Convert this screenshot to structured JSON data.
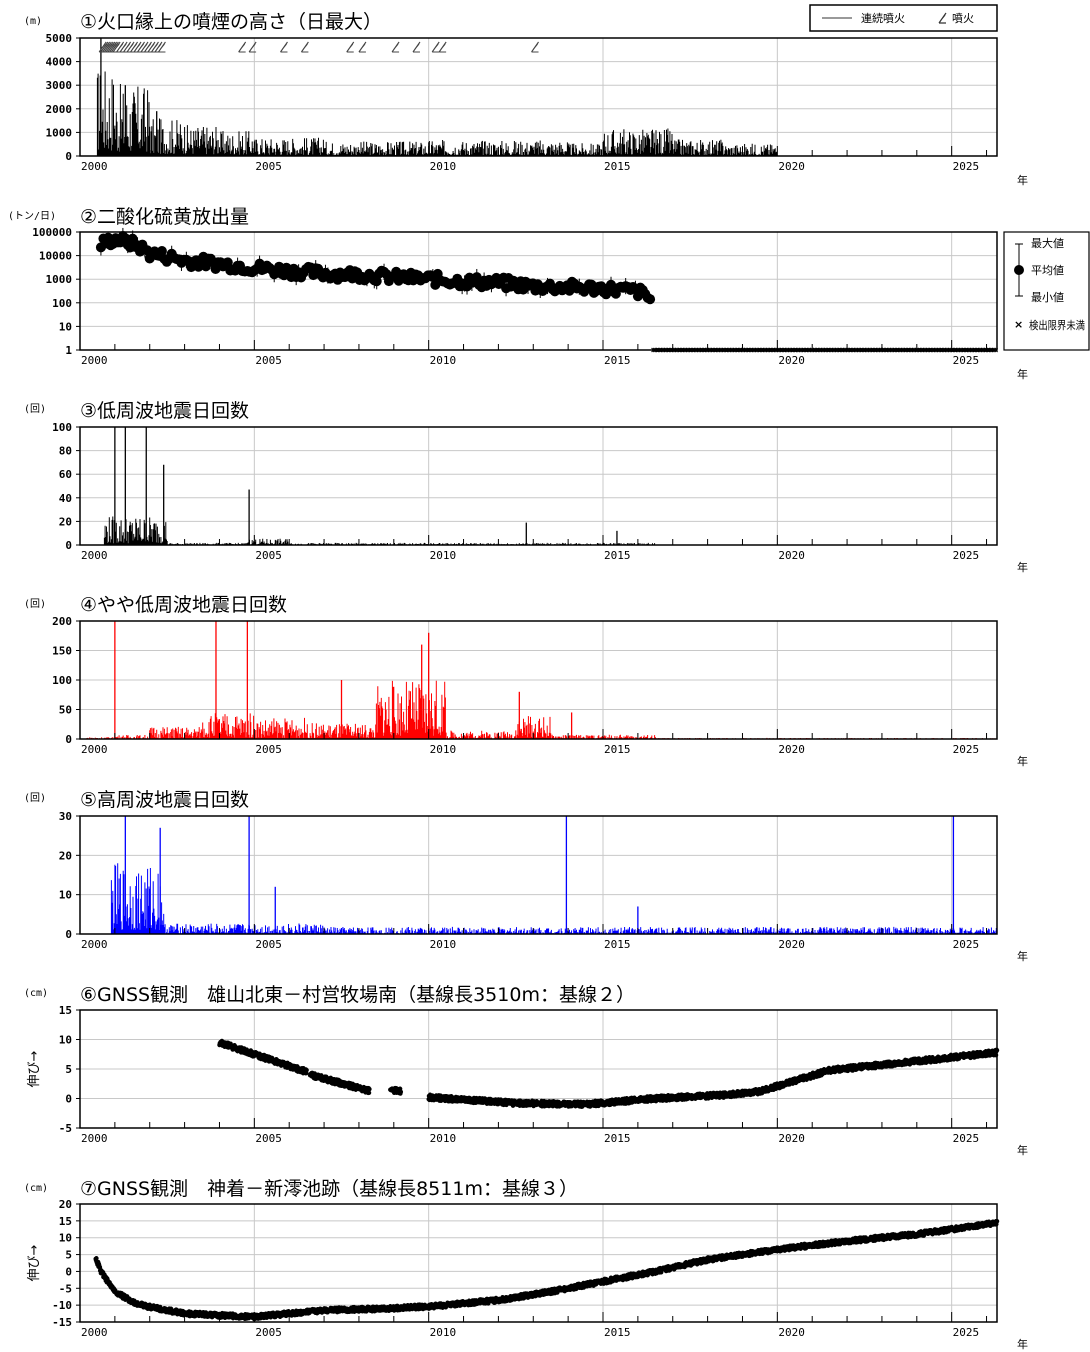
{
  "chart_data": [
    {
      "id": "p1",
      "type": "bar",
      "title": "①火口縁上の噴煙の高さ（日最大）",
      "unit": "(m)",
      "ylim": [
        0,
        5000
      ],
      "yticks": [
        "0",
        "1000",
        "2000",
        "3000",
        "4000",
        "5000"
      ],
      "color": "#000000",
      "legend": {
        "position": "top-right",
        "line_label": "連続噴火",
        "marker_label": "噴火"
      },
      "eruption_years": [
        2000.55,
        2000.6,
        2000.65,
        2000.7,
        2000.75,
        2000.8,
        2000.85,
        2000.9,
        2000.95,
        2001.05,
        2001.15,
        2001.25,
        2001.35,
        2001.45,
        2001.55,
        2001.65,
        2001.75,
        2001.85,
        2001.95,
        2002.05,
        2002.15,
        2002.25,
        2004.55,
        2004.85,
        2005.75,
        2006.35,
        2007.65,
        2008.0,
        2008.95,
        2009.55,
        2010.1,
        2010.3,
        2012.95
      ],
      "segments": [
        {
          "from": 2000.2,
          "to": 2000.5,
          "value": 0
        },
        {
          "from": 2000.5,
          "to": 2001.0,
          "value": 2200
        },
        {
          "from": 2001.0,
          "to": 2002.0,
          "value": 1700
        },
        {
          "from": 2002.0,
          "to": 2003.0,
          "value": 900
        },
        {
          "from": 2003.0,
          "to": 2004.0,
          "value": 750
        },
        {
          "from": 2004.0,
          "to": 2005.0,
          "value": 600
        },
        {
          "from": 2005.0,
          "to": 2007.0,
          "value": 450
        },
        {
          "from": 2007.0,
          "to": 2010.0,
          "value": 350
        },
        {
          "from": 2010.0,
          "to": 2014.0,
          "value": 380
        },
        {
          "from": 2014.0,
          "to": 2015.0,
          "value": 300
        },
        {
          "from": 2015.0,
          "to": 2017.0,
          "value": 650
        },
        {
          "from": 2017.0,
          "to": 2018.5,
          "value": 400
        },
        {
          "from": 2018.5,
          "to": 2020.0,
          "value": 300
        },
        {
          "from": 2020.0,
          "to": 2026.3,
          "value": 0
        }
      ],
      "spikes": [
        {
          "x": 2000.6,
          "value": 5000
        },
        {
          "x": 2001.3,
          "value": 3000
        },
        {
          "x": 2002.2,
          "value": 1900
        }
      ]
    },
    {
      "id": "p2",
      "type": "scatter",
      "title": "②二酸化硫黄放出量",
      "unit": "(トン/日)",
      "yscale": "log",
      "ylim": [
        1,
        100000
      ],
      "yticks": [
        "1",
        "10",
        "100",
        "1000",
        "10000",
        "100000"
      ],
      "legend": {
        "position": "right",
        "max_label": "最大値",
        "mean_label": "平均値",
        "min_label": "最小値",
        "below_label": "検出限界未満"
      },
      "trend": [
        [
          2000.6,
          30000
        ],
        [
          2001.0,
          50000
        ],
        [
          2002.0,
          12000
        ],
        [
          2003.0,
          6000
        ],
        [
          2004.0,
          4500
        ],
        [
          2005.0,
          3000
        ],
        [
          2006.0,
          2200
        ],
        [
          2007.0,
          1700
        ],
        [
          2008.0,
          1600
        ],
        [
          2009.0,
          1200
        ],
        [
          2010.0,
          1000
        ],
        [
          2011.0,
          800
        ],
        [
          2012.0,
          700
        ],
        [
          2013.0,
          500
        ],
        [
          2014.0,
          450
        ],
        [
          2015.0,
          400
        ],
        [
          2016.0,
          300
        ],
        [
          2016.4,
          120
        ]
      ],
      "below_from": 2016.45,
      "below_to": 2026.3
    },
    {
      "id": "p3",
      "type": "bar",
      "title": "③低周波地震日回数",
      "unit": "(回)",
      "ylim": [
        0,
        100
      ],
      "yticks": [
        "0",
        "20",
        "40",
        "60",
        "80",
        "100"
      ],
      "color": "#000000",
      "segments": [
        {
          "from": 2000.2,
          "to": 2000.7,
          "value": 0
        },
        {
          "from": 2000.7,
          "to": 2002.5,
          "value": 14
        },
        {
          "from": 2002.5,
          "to": 2004.8,
          "value": 1
        },
        {
          "from": 2004.8,
          "to": 2006.0,
          "value": 3
        },
        {
          "from": 2006.0,
          "to": 2016.5,
          "value": 1
        },
        {
          "from": 2016.5,
          "to": 2026.3,
          "value": 0
        }
      ],
      "spikes": [
        {
          "x": 2001.0,
          "value": 100
        },
        {
          "x": 2001.3,
          "value": 100
        },
        {
          "x": 2001.9,
          "value": 100
        },
        {
          "x": 2002.4,
          "value": 68
        },
        {
          "x": 2004.85,
          "value": 47
        },
        {
          "x": 2012.8,
          "value": 19
        },
        {
          "x": 2015.4,
          "value": 12
        }
      ]
    },
    {
      "id": "p4",
      "type": "bar",
      "title": "④やや低周波地震日回数",
      "unit": "(回)",
      "ylim": [
        0,
        200
      ],
      "yticks": [
        "0",
        "50",
        "100",
        "150",
        "200"
      ],
      "color": "#ff0000",
      "segments": [
        {
          "from": 2000.2,
          "to": 2001.0,
          "value": 2
        },
        {
          "from": 2001.0,
          "to": 2002.0,
          "value": 4
        },
        {
          "from": 2002.0,
          "to": 2003.5,
          "value": 12
        },
        {
          "from": 2003.5,
          "to": 2005.0,
          "value": 25
        },
        {
          "from": 2005.0,
          "to": 2006.5,
          "value": 20
        },
        {
          "from": 2006.5,
          "to": 2008.5,
          "value": 15
        },
        {
          "from": 2008.5,
          "to": 2010.5,
          "value": 55
        },
        {
          "from": 2010.5,
          "to": 2012.5,
          "value": 8
        },
        {
          "from": 2012.5,
          "to": 2013.5,
          "value": 22
        },
        {
          "from": 2013.5,
          "to": 2016.5,
          "value": 4
        },
        {
          "from": 2016.5,
          "to": 2026.3,
          "value": 1
        }
      ],
      "spikes": [
        {
          "x": 2001.0,
          "value": 200
        },
        {
          "x": 2003.9,
          "value": 200
        },
        {
          "x": 2004.8,
          "value": 200
        },
        {
          "x": 2010.0,
          "value": 180
        },
        {
          "x": 2009.8,
          "value": 160
        },
        {
          "x": 2007.5,
          "value": 100
        },
        {
          "x": 2012.6,
          "value": 80
        },
        {
          "x": 2014.1,
          "value": 45
        }
      ]
    },
    {
      "id": "p5",
      "type": "bar",
      "title": "⑤高周波地震日回数",
      "unit": "(回)",
      "ylim": [
        0,
        30
      ],
      "yticks": [
        "0",
        "10",
        "20",
        "30"
      ],
      "color": "#0000ff",
      "segments": [
        {
          "from": 2000.2,
          "to": 2000.9,
          "value": 0
        },
        {
          "from": 2000.9,
          "to": 2002.4,
          "value": 10
        },
        {
          "from": 2002.4,
          "to": 2007.0,
          "value": 1.5
        },
        {
          "from": 2007.0,
          "to": 2026.3,
          "value": 1.0
        }
      ],
      "spikes": [
        {
          "x": 2001.3,
          "value": 30
        },
        {
          "x": 2002.3,
          "value": 27
        },
        {
          "x": 2004.85,
          "value": 30
        },
        {
          "x": 2005.6,
          "value": 12
        },
        {
          "x": 2013.95,
          "value": 30
        },
        {
          "x": 2016.0,
          "value": 7
        },
        {
          "x": 2025.05,
          "value": 30
        }
      ]
    },
    {
      "id": "p6",
      "type": "scatter",
      "title": "⑥GNSS観測　雄山北東－村営牧場南（基線長3510m：基線２）",
      "unit": "(cm)",
      "ylabel": "伸び→",
      "ylim": [
        -5,
        15
      ],
      "yticks": [
        "-5",
        "0",
        "5",
        "10",
        "15"
      ],
      "segments": [
        [
          [
            2004.0,
            9.5
          ],
          [
            2006.5,
            4.5
          ]
        ],
        [
          [
            2006.6,
            4.0
          ],
          [
            2008.3,
            1.3
          ]
        ],
        [
          [
            2008.9,
            1.5
          ],
          [
            2009.2,
            1.2
          ]
        ],
        [
          [
            2010.0,
            0.2
          ],
          [
            2012.5,
            -0.8
          ],
          [
            2014.5,
            -1.0
          ],
          [
            2016.5,
            0.0
          ],
          [
            2018.5,
            0.6
          ],
          [
            2019.5,
            1.2
          ],
          [
            2021.5,
            4.8
          ],
          [
            2023.5,
            6.0
          ],
          [
            2026.3,
            7.8
          ]
        ]
      ]
    },
    {
      "id": "p7",
      "type": "scatter",
      "title": "⑦GNSS観測　神着－新澪池跡（基線長8511m：基線３）",
      "unit": "(cm)",
      "ylabel": "伸び→",
      "ylim": [
        -15,
        20
      ],
      "yticks": [
        "-15",
        "-10",
        "-5",
        "0",
        "5",
        "10",
        "15",
        "20"
      ],
      "segments": [
        [
          [
            2000.45,
            4.0
          ],
          [
            2000.6,
            0.0
          ],
          [
            2001.0,
            -6.0
          ],
          [
            2001.6,
            -9.5
          ],
          [
            2002.0,
            -10.5
          ],
          [
            2003.0,
            -12.5
          ],
          [
            2004.0,
            -13.0
          ],
          [
            2005.0,
            -13.5
          ],
          [
            2006.0,
            -12.5
          ],
          [
            2007.0,
            -11.5
          ],
          [
            2009.0,
            -11.0
          ],
          [
            2010.5,
            -10.0
          ],
          [
            2012.0,
            -8.5
          ],
          [
            2013.5,
            -6.0
          ],
          [
            2015.0,
            -3.0
          ],
          [
            2016.5,
            0.0
          ],
          [
            2018.0,
            3.5
          ],
          [
            2020.0,
            6.5
          ],
          [
            2022.0,
            9.0
          ],
          [
            2024.0,
            11.0
          ],
          [
            2026.3,
            14.5
          ]
        ]
      ]
    }
  ],
  "x_axis": {
    "range": [
      2000,
      2026.3
    ],
    "labels": [
      "2000",
      "2005",
      "2010",
      "2015",
      "2020",
      "2025"
    ],
    "unit_label": "年"
  }
}
